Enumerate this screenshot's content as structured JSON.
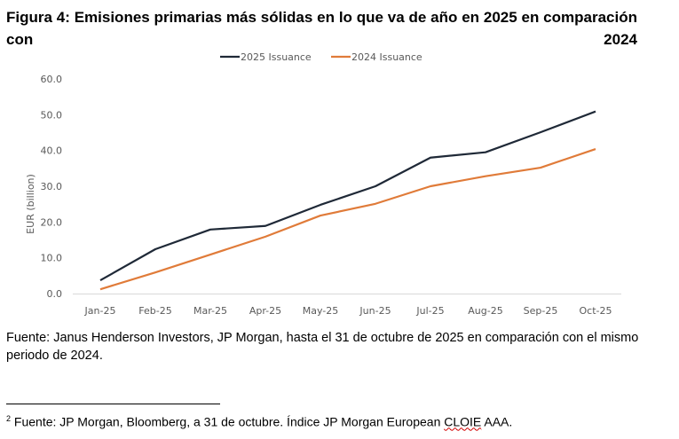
{
  "title": "Figura 4: Emisiones primarias más sólidas en lo que va de año en 2025 en comparación con 2024",
  "source_note": "Fuente: Janus Henderson Investors, JP Morgan, hasta el 31 de octubre de 2025 en comparación con el mismo periodo de 2024.",
  "footnote": {
    "marker": "2",
    "text_before": " Fuente: JP Morgan, Bloomberg, a 31 de octubre. Índice JP Morgan European ",
    "flagged_word": "CLOIE",
    "text_after": " AAA."
  },
  "chart_data": {
    "type": "line",
    "title": "",
    "xlabel": "",
    "ylabel": "EUR (billion)",
    "ylim": [
      0,
      60
    ],
    "yticks": [
      "0.0",
      "10.0",
      "20.0",
      "30.0",
      "40.0",
      "50.0",
      "60.0"
    ],
    "ytick_values": [
      0,
      10,
      20,
      30,
      40,
      50,
      60
    ],
    "grid": false,
    "legend": "top-center",
    "categories": [
      "Jan-25",
      "Feb-25",
      "Mar-25",
      "Apr-25",
      "May-25",
      "Jun-25",
      "Jul-25",
      "Aug-25",
      "Sep-25",
      "Oct-25"
    ],
    "series": [
      {
        "name": "2025 Issuance",
        "color": "#1f2937",
        "values": [
          3.7,
          12.4,
          17.9,
          18.9,
          24.8,
          30.0,
          38.0,
          39.5,
          45.1,
          50.9
        ]
      },
      {
        "name": "2024 Issuance",
        "color": "#e07b39",
        "values": [
          1.2,
          5.9,
          10.9,
          15.9,
          21.8,
          25.1,
          30.0,
          32.8,
          35.2,
          40.4
        ]
      }
    ]
  }
}
